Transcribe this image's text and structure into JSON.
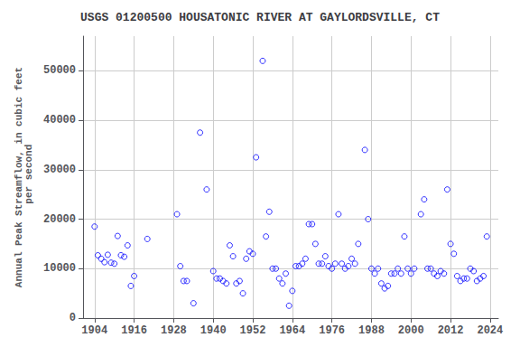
{
  "chart_data": {
    "type": "scatter",
    "title": "USGS 01200500 HOUSATONIC RIVER AT GAYLORDSVILLE, CT",
    "ylabel": "Annual Peak Streamflow, in cubic feet\n per second",
    "x": [
      1904,
      1905,
      1906,
      1907,
      1908,
      1909,
      1910,
      1911,
      1912,
      1913,
      1914,
      1915,
      1916,
      1920,
      1929,
      1930,
      1931,
      1932,
      1934,
      1936,
      1938,
      1940,
      1941,
      1942,
      1943,
      1944,
      1945,
      1946,
      1947,
      1948,
      1949,
      1950,
      1951,
      1952,
      1953,
      1955,
      1956,
      1957,
      1958,
      1959,
      1960,
      1961,
      1962,
      1963,
      1964,
      1965,
      1966,
      1967,
      1968,
      1969,
      1970,
      1971,
      1972,
      1973,
      1974,
      1975,
      1976,
      1977,
      1978,
      1979,
      1980,
      1981,
      1982,
      1983,
      1984,
      1986,
      1987,
      1988,
      1989,
      1990,
      1991,
      1992,
      1993,
      1994,
      1995,
      1996,
      1997,
      1998,
      1999,
      2000,
      2001,
      2003,
      2004,
      2005,
      2006,
      2007,
      2008,
      2009,
      2010,
      2011,
      2012,
      2013,
      2014,
      2015,
      2016,
      2017,
      2018,
      2019,
      2020,
      2021,
      2022,
      2023
    ],
    "values": [
      18500,
      12700,
      12000,
      11300,
      12800,
      11200,
      11000,
      16600,
      12700,
      12400,
      14700,
      6500,
      8500,
      16000,
      21000,
      10500,
      7500,
      7500,
      3000,
      37500,
      26000,
      9500,
      8000,
      8000,
      7500,
      7000,
      14700,
      12500,
      7000,
      7500,
      5000,
      12000,
      13500,
      13000,
      32500,
      52000,
      16500,
      21500,
      10000,
      10000,
      8000,
      7000,
      9000,
      2500,
      5500,
      10500,
      10500,
      11000,
      12000,
      19000,
      19000,
      15000,
      11000,
      11000,
      12500,
      10500,
      10000,
      11000,
      21000,
      11000,
      10000,
      10500,
      12000,
      11000,
      15000,
      34000,
      20000,
      10000,
      9000,
      10000,
      7000,
      6000,
      6500,
      9000,
      9000,
      10000,
      9000,
      16500,
      10000,
      9000,
      10000,
      21000,
      24000,
      10000,
      10000,
      9000,
      8500,
      9500,
      9000,
      26000,
      15000,
      13000,
      8500,
      7500,
      8000,
      8000,
      10000,
      9500,
      7500,
      8000,
      8500,
      16500
    ],
    "color": "blue",
    "marker": "circle",
    "xlim": [
      1900.5,
      2026.5
    ],
    "ylim": [
      0,
      57000
    ],
    "xticks": [
      1904,
      1916,
      1928,
      1940,
      1952,
      1964,
      1976,
      1988,
      2000,
      2012,
      2024
    ],
    "yticks": [
      0,
      10000,
      20000,
      30000,
      40000,
      50000
    ],
    "grid": true
  }
}
